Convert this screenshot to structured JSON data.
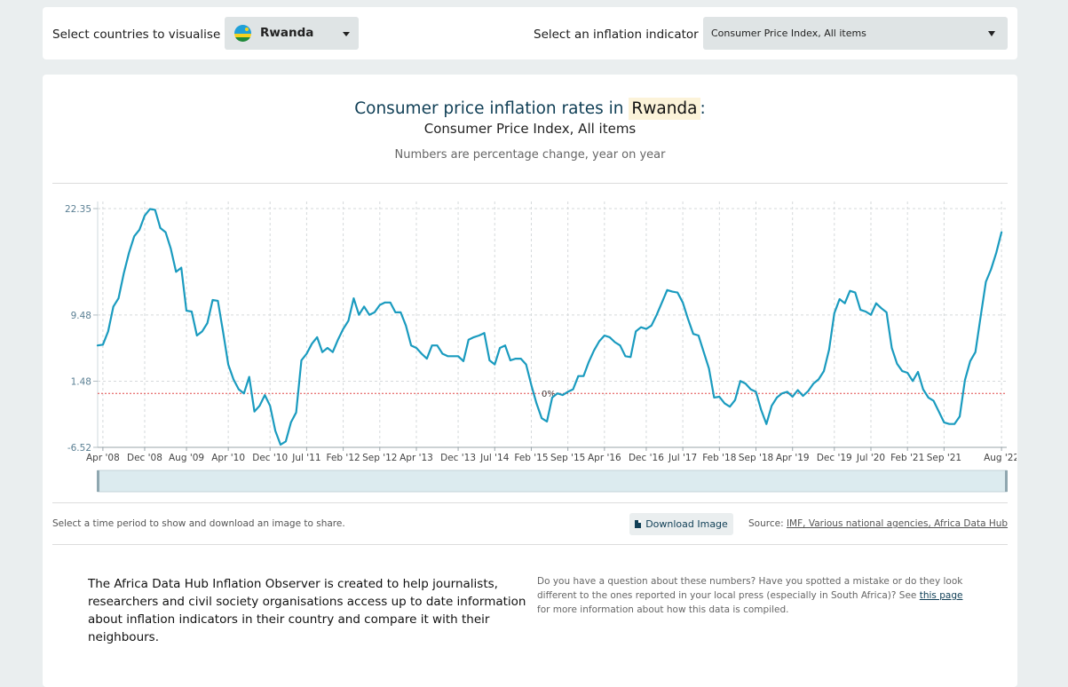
{
  "controls": {
    "country_label": "Select countries to visualise",
    "country_value": "Rwanda",
    "indicator_label": "Select an inflation indicator",
    "indicator_value": "Consumer Price Index, All items"
  },
  "chart": {
    "title_prefix": "Consumer price inflation rates in",
    "title_country": "Rwanda",
    "title_suffix": ":",
    "subtitle": "Consumer Price Index, All items",
    "note": "Numbers are percentage change, year on year",
    "zero_label": "0%"
  },
  "footer": {
    "hint": "Select a time period to show and download an image to share.",
    "download_label": "Download Image",
    "source_prefix": "Source:",
    "source_link": "IMF, Various national agencies, Africa Data Hub"
  },
  "about": {
    "text": "The Africa Data Hub Inflation Observer is created to help journalists, researchers and civil society organisations access up to date information about inflation indicators in their country and compare it with their neighbours.",
    "question_text": "Do you have a question about these numbers? Have you spotted a mistake or do they look different to the ones reported in your local press (especially in South Africa)? See",
    "question_link": "this page",
    "question_after": "for more information about how this data is compiled."
  },
  "colors": {
    "line": "#1a9bbf",
    "zero_line": "#e04848",
    "title": "#103f56"
  },
  "chart_data": {
    "type": "line",
    "title": "Consumer price inflation rates in Rwanda: Consumer Price Index, All items",
    "ylabel": "",
    "ylim": [
      -6.52,
      22.35
    ],
    "y_ticks": [
      22.35,
      9.48,
      1.48,
      -6.52
    ],
    "x_ticks": [
      "Apr '08",
      "Dec '08",
      "Aug '09",
      "Apr '10",
      "Dec '10",
      "Jul '11",
      "Feb '12",
      "Sep '12",
      "Apr '13",
      "Dec '13",
      "Jul '14",
      "Feb '15",
      "Sep '15",
      "Apr '16",
      "Dec '16",
      "Jul '17",
      "Feb '18",
      "Sep '18",
      "Apr '19",
      "Dec '19",
      "Jul '20",
      "Feb '21",
      "Sep '21",
      "Aug '22"
    ],
    "x_range": [
      "2008-03",
      "2022-09"
    ],
    "grid": true,
    "reference_line": 0,
    "series": [
      {
        "name": "",
        "points": [
          [
            "2008-03",
            5.8
          ],
          [
            "2008-04",
            5.9
          ],
          [
            "2008-05",
            7.5
          ],
          [
            "2008-06",
            10.5
          ],
          [
            "2008-07",
            11.5
          ],
          [
            "2008-08",
            14.5
          ],
          [
            "2008-09",
            17.0
          ],
          [
            "2008-10",
            19.0
          ],
          [
            "2008-11",
            19.8
          ],
          [
            "2008-12",
            21.5
          ],
          [
            "2009-01",
            22.3
          ],
          [
            "2009-02",
            22.2
          ],
          [
            "2009-03",
            20.0
          ],
          [
            "2009-04",
            19.5
          ],
          [
            "2009-05",
            17.5
          ],
          [
            "2009-06",
            14.7
          ],
          [
            "2009-07",
            15.2
          ],
          [
            "2009-08",
            10.0
          ],
          [
            "2009-09",
            9.9
          ],
          [
            "2009-10",
            7.0
          ],
          [
            "2009-11",
            7.5
          ],
          [
            "2009-12",
            8.5
          ],
          [
            "2010-01",
            11.3
          ],
          [
            "2010-02",
            11.2
          ],
          [
            "2010-03",
            7.5
          ],
          [
            "2010-04",
            3.5
          ],
          [
            "2010-05",
            1.7
          ],
          [
            "2010-06",
            0.5
          ],
          [
            "2010-07",
            0.0
          ],
          [
            "2010-08",
            2.0
          ],
          [
            "2010-09",
            -2.2
          ],
          [
            "2010-10",
            -1.5
          ],
          [
            "2010-11",
            -0.2
          ],
          [
            "2010-12",
            -1.5
          ],
          [
            "2011-01",
            -4.5
          ],
          [
            "2011-02",
            -6.2
          ],
          [
            "2011-03",
            -5.8
          ],
          [
            "2011-04",
            -3.5
          ],
          [
            "2011-05",
            -2.3
          ],
          [
            "2011-06",
            4.0
          ],
          [
            "2011-07",
            4.8
          ],
          [
            "2011-08",
            6.0
          ],
          [
            "2011-09",
            6.8
          ],
          [
            "2011-10",
            5.0
          ],
          [
            "2011-11",
            5.5
          ],
          [
            "2011-12",
            5.0
          ],
          [
            "2012-01",
            6.5
          ],
          [
            "2012-02",
            7.8
          ],
          [
            "2012-03",
            8.8
          ],
          [
            "2012-04",
            11.5
          ],
          [
            "2012-05",
            9.5
          ],
          [
            "2012-06",
            10.5
          ],
          [
            "2012-07",
            9.5
          ],
          [
            "2012-08",
            9.8
          ],
          [
            "2012-09",
            10.7
          ],
          [
            "2012-10",
            11.0
          ],
          [
            "2012-11",
            11.0
          ],
          [
            "2012-12",
            9.8
          ],
          [
            "2013-01",
            9.8
          ],
          [
            "2013-02",
            8.2
          ],
          [
            "2013-03",
            5.8
          ],
          [
            "2013-04",
            5.5
          ],
          [
            "2013-05",
            4.8
          ],
          [
            "2013-06",
            4.2
          ],
          [
            "2013-07",
            5.8
          ],
          [
            "2013-08",
            5.8
          ],
          [
            "2013-09",
            4.8
          ],
          [
            "2013-10",
            4.5
          ],
          [
            "2013-11",
            4.5
          ],
          [
            "2013-12",
            4.5
          ],
          [
            "2014-01",
            3.9
          ],
          [
            "2014-02",
            6.5
          ],
          [
            "2014-03",
            6.8
          ],
          [
            "2014-04",
            7.0
          ],
          [
            "2014-05",
            7.3
          ],
          [
            "2014-06",
            4.0
          ],
          [
            "2014-07",
            3.5
          ],
          [
            "2014-08",
            5.5
          ],
          [
            "2014-09",
            5.8
          ],
          [
            "2014-10",
            4.0
          ],
          [
            "2014-11",
            4.2
          ],
          [
            "2014-12",
            4.2
          ],
          [
            "2015-01",
            3.5
          ],
          [
            "2015-02",
            1.0
          ],
          [
            "2015-03",
            -1.2
          ],
          [
            "2015-04",
            -3.0
          ],
          [
            "2015-05",
            -3.4
          ],
          [
            "2015-06",
            -0.5
          ],
          [
            "2015-07",
            0.0
          ],
          [
            "2015-08",
            -0.2
          ],
          [
            "2015-09",
            0.2
          ],
          [
            "2015-10",
            0.5
          ],
          [
            "2015-11",
            2.1
          ],
          [
            "2015-12",
            2.1
          ],
          [
            "2016-01",
            3.8
          ],
          [
            "2016-02",
            5.2
          ],
          [
            "2016-03",
            6.3
          ],
          [
            "2016-04",
            7.0
          ],
          [
            "2016-05",
            6.8
          ],
          [
            "2016-06",
            6.2
          ],
          [
            "2016-07",
            5.8
          ],
          [
            "2016-08",
            4.5
          ],
          [
            "2016-09",
            4.4
          ],
          [
            "2016-10",
            7.5
          ],
          [
            "2016-11",
            8.0
          ],
          [
            "2016-12",
            7.8
          ],
          [
            "2017-01",
            8.2
          ],
          [
            "2017-02",
            9.5
          ],
          [
            "2017-03",
            11.0
          ],
          [
            "2017-04",
            12.5
          ],
          [
            "2017-05",
            12.3
          ],
          [
            "2017-06",
            12.2
          ],
          [
            "2017-07",
            11.0
          ],
          [
            "2017-08",
            9.0
          ],
          [
            "2017-09",
            7.2
          ],
          [
            "2017-10",
            7.0
          ],
          [
            "2017-11",
            5.0
          ],
          [
            "2017-12",
            3.0
          ],
          [
            "2018-01",
            -0.5
          ],
          [
            "2018-02",
            -0.4
          ],
          [
            "2018-03",
            -1.2
          ],
          [
            "2018-04",
            -1.6
          ],
          [
            "2018-05",
            -0.8
          ],
          [
            "2018-06",
            1.5
          ],
          [
            "2018-07",
            1.2
          ],
          [
            "2018-08",
            0.5
          ],
          [
            "2018-09",
            0.2
          ],
          [
            "2018-10",
            -2.0
          ],
          [
            "2018-11",
            -3.7
          ],
          [
            "2018-12",
            -1.5
          ],
          [
            "2019-01",
            -0.5
          ],
          [
            "2019-02",
            0.0
          ],
          [
            "2019-03",
            0.2
          ],
          [
            "2019-04",
            -0.4
          ],
          [
            "2019-05",
            0.4
          ],
          [
            "2019-06",
            -0.3
          ],
          [
            "2019-07",
            0.3
          ],
          [
            "2019-08",
            1.2
          ],
          [
            "2019-09",
            1.7
          ],
          [
            "2019-10",
            2.7
          ],
          [
            "2019-11",
            5.3
          ],
          [
            "2019-12",
            9.7
          ],
          [
            "2020-01",
            11.4
          ],
          [
            "2020-02",
            10.9
          ],
          [
            "2020-03",
            12.4
          ],
          [
            "2020-04",
            12.2
          ],
          [
            "2020-05",
            10.1
          ],
          [
            "2020-06",
            9.9
          ],
          [
            "2020-07",
            9.5
          ],
          [
            "2020-08",
            10.9
          ],
          [
            "2020-09",
            10.3
          ],
          [
            "2020-10",
            9.8
          ],
          [
            "2020-11",
            5.5
          ],
          [
            "2020-12",
            3.6
          ],
          [
            "2021-01",
            2.7
          ],
          [
            "2021-02",
            2.5
          ],
          [
            "2021-03",
            1.5
          ],
          [
            "2021-04",
            2.6
          ],
          [
            "2021-05",
            0.5
          ],
          [
            "2021-06",
            -0.5
          ],
          [
            "2021-07",
            -0.9
          ],
          [
            "2021-08",
            -2.2
          ],
          [
            "2021-09",
            -3.5
          ],
          [
            "2021-10",
            -3.7
          ],
          [
            "2021-11",
            -3.7
          ],
          [
            "2021-12",
            -2.8
          ],
          [
            "2022-01",
            1.6
          ],
          [
            "2022-02",
            3.9
          ],
          [
            "2022-03",
            5.0
          ],
          [
            "2022-04",
            9.3
          ],
          [
            "2022-05",
            13.5
          ],
          [
            "2022-06",
            15.0
          ],
          [
            "2022-07",
            17.0
          ],
          [
            "2022-08",
            19.5
          ]
        ]
      }
    ]
  }
}
